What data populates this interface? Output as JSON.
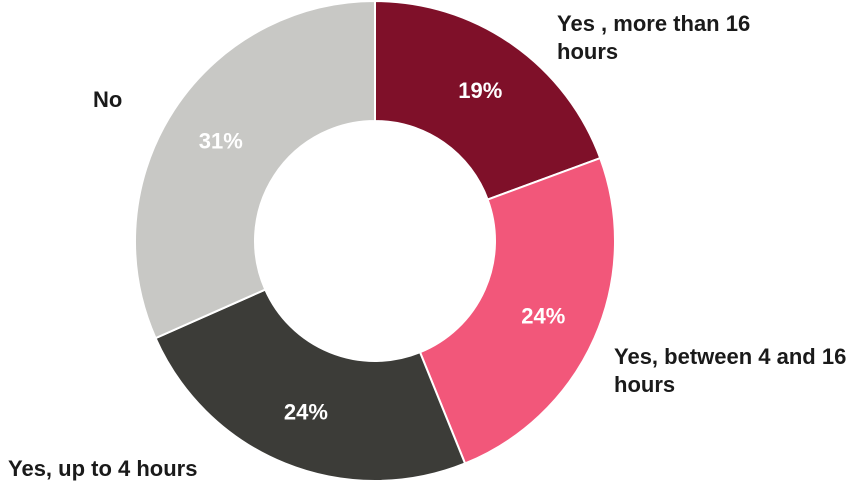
{
  "chart_data": {
    "type": "pie",
    "variant": "donut",
    "title": "",
    "slices": [
      {
        "label": "Yes , more than 16 hours",
        "value": 19,
        "display": "19%",
        "color": "#7f1029"
      },
      {
        "label": "Yes, between 4 and 16 hours",
        "value": 24,
        "display": "24%",
        "color": "#f2577a"
      },
      {
        "label": "Yes, up to 4 hours",
        "value": 24,
        "display": "24%",
        "color": "#3c3c38"
      },
      {
        "label": "No",
        "value": 31,
        "display": "31%",
        "color": "#c8c8c5"
      }
    ],
    "legend": "none",
    "data_labels": "inside"
  }
}
